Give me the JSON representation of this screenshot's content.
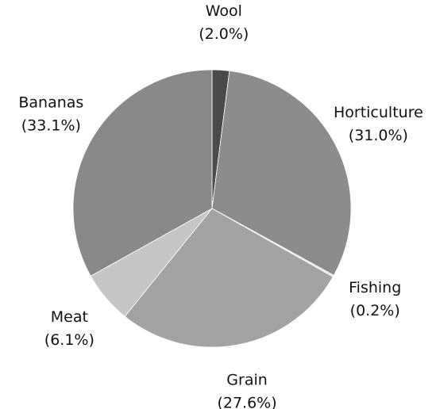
{
  "chart_data": {
    "type": "pie",
    "categories": [
      "Wool",
      "Horticulture",
      "Fishing",
      "Grain",
      "Meat",
      "Bananas"
    ],
    "values": [
      2.0,
      31.0,
      0.2,
      27.6,
      6.1,
      33.1
    ],
    "value_labels": [
      "(2.0%)",
      "(31.0%)",
      "(0.2%)",
      "(27.6%)",
      "(6.1%)",
      "(33.1%)"
    ],
    "colors": [
      "#4a4a4a",
      "#8c8c8c",
      "#e2e2e2",
      "#a3a3a3",
      "#c6c6c6",
      "#898989"
    ]
  }
}
